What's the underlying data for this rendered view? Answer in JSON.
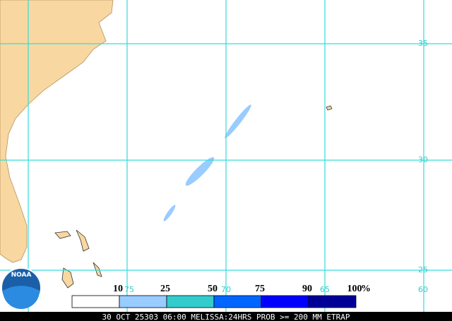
{
  "map": {
    "lat_labels": [
      "35",
      "30",
      "25"
    ],
    "lon_labels": [
      "75",
      "70",
      "65",
      "60"
    ],
    "logo": "NOAA",
    "legend": {
      "bins": [
        {
          "label": "10",
          "color": "#ffffff"
        },
        {
          "label": "25",
          "color": "#99ccff"
        },
        {
          "label": "50",
          "color": "#33cccc"
        },
        {
          "label": "75",
          "color": "#0066ff"
        },
        {
          "label": "90",
          "color": "#0000ff"
        },
        {
          "label": "100",
          "color": "#000099"
        }
      ],
      "unit": "%"
    },
    "status": "30 OCT 25303 06:00 MELISSA:24HRS PROB >= 200 MM ETRAP"
  }
}
